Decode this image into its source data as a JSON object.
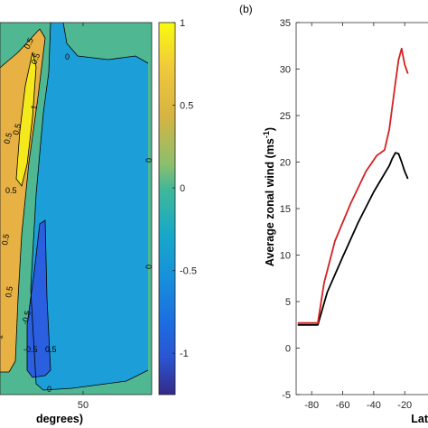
{
  "colors": {
    "bg_zero": "#4fb893",
    "neg_half": "#1c9fd8",
    "neg_one": "#2a5fe0",
    "pos_half": "#e8b144",
    "pos_one": "#f5e81c",
    "colorbar_bottom": "#352a87",
    "line_black": "#000000",
    "line_red": "#d32124"
  },
  "chart_data": [
    {
      "type": "heatmap",
      "panel_label": "",
      "xlabel": "degrees)",
      "x_ticks": [
        "50"
      ],
      "contour_labels": [
        "0.5",
        "0.5",
        "0.5",
        "0.5",
        "0.5",
        "0.5",
        "0.5",
        "0",
        "0",
        "0",
        "-0.5",
        "-0.5",
        "0.5",
        "1",
        "1",
        "0"
      ],
      "colorbar": {
        "ticks": [
          "1",
          "0.5",
          "0",
          "-0.5",
          "-1"
        ],
        "range": [
          -1.25,
          1.0
        ]
      }
    },
    {
      "type": "line",
      "panel_label": "(b)",
      "xlabel": "Lat",
      "ylabel_main": "Average zonal wind (ms",
      "ylabel_sup": "-1",
      "ylabel_close": ")",
      "xlim": [
        -90,
        -5
      ],
      "ylim": [
        -5,
        35
      ],
      "x_ticks": [
        "-80",
        "-60",
        "-40",
        "-20"
      ],
      "y_ticks": [
        "-5",
        "0",
        "5",
        "10",
        "15",
        "20",
        "25",
        "30",
        "35"
      ],
      "series": [
        {
          "color": "#000000",
          "x": [
            -89,
            -76,
            -70,
            -60,
            -50,
            -40,
            -35,
            -30,
            -28,
            -26,
            -24,
            -22,
            -20,
            -18
          ],
          "y": [
            2.5,
            2.5,
            6.0,
            9.8,
            13.5,
            16.8,
            18.2,
            19.6,
            20.4,
            21.0,
            20.9,
            20.0,
            19.0,
            18.2
          ]
        },
        {
          "color": "#d32124",
          "x": [
            -89,
            -76,
            -72,
            -65,
            -55,
            -45,
            -38,
            -33,
            -30,
            -26,
            -24,
            -22,
            -20,
            -18
          ],
          "y": [
            2.7,
            2.7,
            7.0,
            11.5,
            15.5,
            19.0,
            20.7,
            21.3,
            23.5,
            28.5,
            31.0,
            32.2,
            30.5,
            29.5
          ]
        }
      ]
    }
  ]
}
